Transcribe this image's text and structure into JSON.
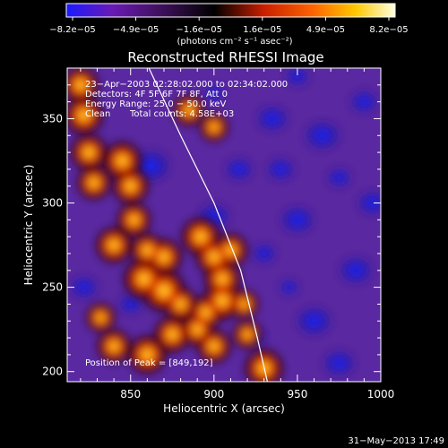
{
  "chart_data": {
    "type": "heatmap",
    "title": "Reconstructed RHESSI Image",
    "xlabel": "Heliocentric X (arcsec)",
    "ylabel": "Heliocentric Y (arcsec)",
    "xlim": [
      812,
      1000
    ],
    "ylim": [
      194,
      380
    ],
    "xticks": [
      850,
      900,
      950,
      1000
    ],
    "yticks": [
      200,
      250,
      300,
      350
    ],
    "colorbar": {
      "range": [
        -8.2e-05,
        8.2e-05
      ],
      "tick_labels": [
        "−8.2e−05",
        "−4.9e−05",
        "−1.6e−05",
        "1.6e−05",
        "4.9e−05",
        "8.2e−05"
      ],
      "units": "(photons cm⁻² s⁻¹ asec⁻²)",
      "palette": [
        "#1a1aff",
        "#6a1ab4",
        "#1a0a1a",
        "#000000",
        "#c81e00",
        "#ff6400",
        "#ffc800",
        "#ffffc8"
      ]
    },
    "annotations": [
      "23−Apr−2003 02:28:02.000 to 02:34:02.000",
      "Detectors: 4F 5F 6F 7F 8F, Att 0",
      "Energy Range: 25.0 − 50.0 keV",
      "Clean",
      "Total counts: 4.58E+03"
    ],
    "peak_label": "Position of Peak = [849,192]",
    "peak": [
      849,
      192
    ],
    "limb_curve": [
      [
        861,
        380
      ],
      [
        880,
        340
      ],
      [
        900,
        300
      ],
      [
        916,
        260
      ],
      [
        926,
        220
      ],
      [
        932,
        194
      ]
    ],
    "hot_regions": [
      [
        820,
        370,
        0.75
      ],
      [
        822,
        352,
        0.8
      ],
      [
        825,
        330,
        0.75
      ],
      [
        828,
        312,
        0.7
      ],
      [
        845,
        325,
        0.8
      ],
      [
        850,
        310,
        0.75
      ],
      [
        852,
        290,
        0.7
      ],
      [
        840,
        275,
        0.75
      ],
      [
        860,
        272,
        0.7
      ],
      [
        870,
        268,
        0.75
      ],
      [
        858,
        255,
        0.85
      ],
      [
        870,
        248,
        0.9
      ],
      [
        880,
        240,
        0.7
      ],
      [
        892,
        280,
        0.8
      ],
      [
        900,
        268,
        0.75
      ],
      [
        905,
        255,
        0.75
      ],
      [
        910,
        272,
        0.7
      ],
      [
        885,
        355,
        0.65
      ],
      [
        900,
        345,
        0.6
      ],
      [
        918,
        240,
        0.6
      ],
      [
        920,
        222,
        0.6
      ],
      [
        832,
        232,
        0.6
      ],
      [
        840,
        215,
        0.7
      ],
      [
        860,
        210,
        0.8
      ],
      [
        875,
        222,
        0.75
      ],
      [
        890,
        225,
        0.7
      ],
      [
        900,
        215,
        0.7
      ],
      [
        930,
        202,
        0.8
      ],
      [
        905,
        242,
        0.8
      ],
      [
        895,
        235,
        0.7
      ]
    ],
    "cool_regions": [
      [
        862,
        322,
        1.0
      ],
      [
        900,
        292,
        0.8
      ],
      [
        935,
        350,
        0.8
      ],
      [
        950,
        290,
        0.85
      ],
      [
        965,
        340,
        0.9
      ],
      [
        985,
        260,
        0.85
      ],
      [
        960,
        230,
        0.9
      ],
      [
        940,
        320,
        0.7
      ],
      [
        975,
        205,
        0.8
      ],
      [
        990,
        360,
        0.7
      ],
      [
        930,
        270,
        0.6
      ],
      [
        822,
        250,
        0.7
      ],
      [
        850,
        240,
        0.6
      ],
      [
        995,
        300,
        0.75
      ],
      [
        925,
        220,
        0.5
      ],
      [
        900,
        365,
        0.5
      ],
      [
        975,
        315,
        0.6
      ],
      [
        945,
        250,
        0.5
      ],
      [
        915,
        320,
        0.7
      ],
      [
        950,
        375,
        0.6
      ]
    ],
    "grid": false
  },
  "footer": {
    "timestamp": "31−May−2013 17:49"
  }
}
